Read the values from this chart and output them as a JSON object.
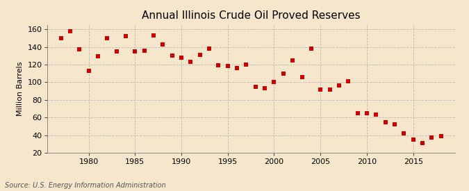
{
  "title": "Annual Illinois Crude Oil Proved Reserves",
  "ylabel": "Million Barrels",
  "source": "Source: U.S. Energy Information Administration",
  "years": [
    1977,
    1978,
    1979,
    1980,
    1981,
    1982,
    1983,
    1984,
    1985,
    1986,
    1987,
    1988,
    1989,
    1990,
    1991,
    1992,
    1993,
    1994,
    1995,
    1996,
    1997,
    1998,
    1999,
    2000,
    2001,
    2002,
    2003,
    2004,
    2005,
    2006,
    2007,
    2008,
    2009,
    2010,
    2011,
    2012,
    2013,
    2014,
    2015,
    2016,
    2017,
    2018
  ],
  "values": [
    150,
    158,
    137,
    113,
    129,
    150,
    135,
    152,
    135,
    136,
    153,
    143,
    130,
    128,
    123,
    131,
    138,
    119,
    118,
    116,
    120,
    95,
    93,
    100,
    110,
    125,
    106,
    138,
    92,
    92,
    96,
    101,
    65,
    65,
    63,
    55,
    52,
    42,
    35,
    31,
    37,
    39
  ],
  "marker_color": "#cc0000",
  "marker_size": 16,
  "background_color": "#f5e6cc",
  "grid_color": "#bbbbbb",
  "xlim": [
    1975.5,
    2019.5
  ],
  "ylim": [
    20,
    165
  ],
  "yticks": [
    20,
    40,
    60,
    80,
    100,
    120,
    140,
    160
  ],
  "xticks": [
    1980,
    1985,
    1990,
    1995,
    2000,
    2005,
    2010,
    2015
  ],
  "title_fontsize": 11,
  "label_fontsize": 8,
  "tick_fontsize": 8,
  "source_fontsize": 7
}
